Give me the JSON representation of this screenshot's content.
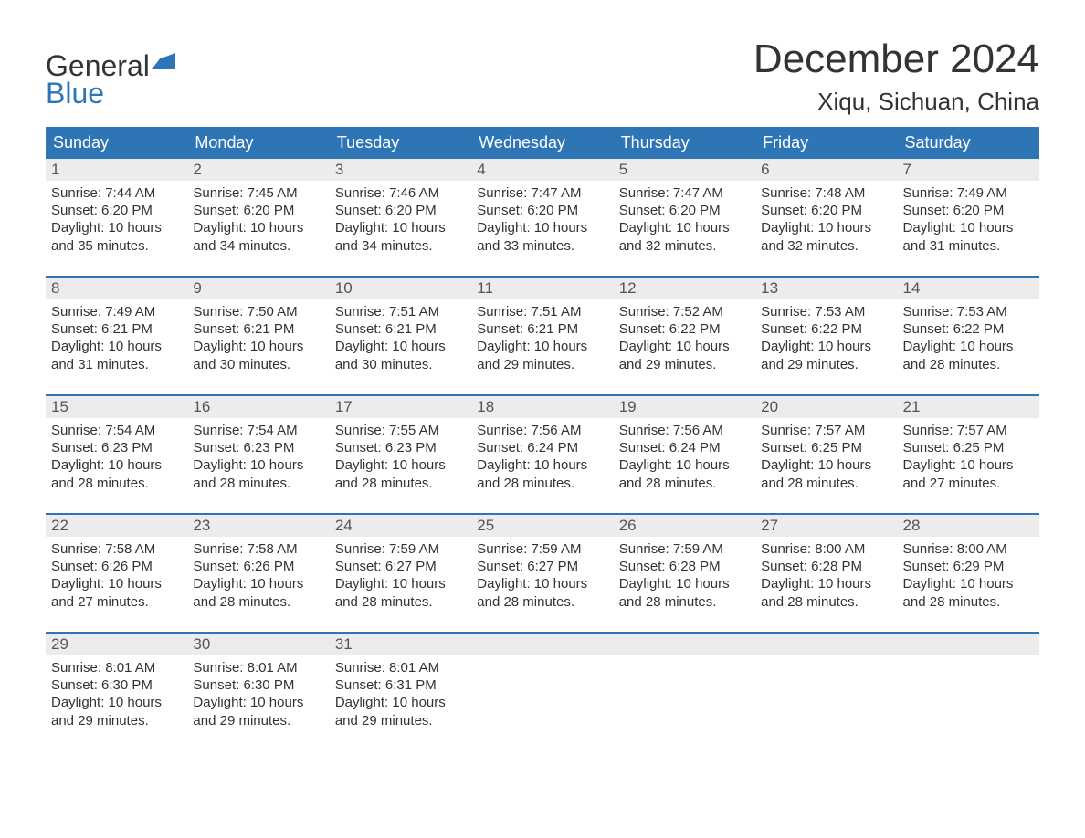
{
  "brand": {
    "line1": "General",
    "line2": "Blue"
  },
  "colors": {
    "brand_blue": "#2e75b6",
    "header_bg": "#2e75b6",
    "header_fg": "#ffffff",
    "daynum_bg": "#ececec",
    "text": "#333333",
    "background": "#ffffff"
  },
  "title": "December 2024",
  "location": "Xiqu, Sichuan, China",
  "day_names": [
    "Sunday",
    "Monday",
    "Tuesday",
    "Wednesday",
    "Thursday",
    "Friday",
    "Saturday"
  ],
  "labels": {
    "sunrise": "Sunrise:",
    "sunset": "Sunset:",
    "daylight": "Daylight:"
  },
  "weeks": [
    [
      {
        "num": "1",
        "sunrise": "7:44 AM",
        "sunset": "6:20 PM",
        "daylight": "10 hours and 35 minutes."
      },
      {
        "num": "2",
        "sunrise": "7:45 AM",
        "sunset": "6:20 PM",
        "daylight": "10 hours and 34 minutes."
      },
      {
        "num": "3",
        "sunrise": "7:46 AM",
        "sunset": "6:20 PM",
        "daylight": "10 hours and 34 minutes."
      },
      {
        "num": "4",
        "sunrise": "7:47 AM",
        "sunset": "6:20 PM",
        "daylight": "10 hours and 33 minutes."
      },
      {
        "num": "5",
        "sunrise": "7:47 AM",
        "sunset": "6:20 PM",
        "daylight": "10 hours and 32 minutes."
      },
      {
        "num": "6",
        "sunrise": "7:48 AM",
        "sunset": "6:20 PM",
        "daylight": "10 hours and 32 minutes."
      },
      {
        "num": "7",
        "sunrise": "7:49 AM",
        "sunset": "6:20 PM",
        "daylight": "10 hours and 31 minutes."
      }
    ],
    [
      {
        "num": "8",
        "sunrise": "7:49 AM",
        "sunset": "6:21 PM",
        "daylight": "10 hours and 31 minutes."
      },
      {
        "num": "9",
        "sunrise": "7:50 AM",
        "sunset": "6:21 PM",
        "daylight": "10 hours and 30 minutes."
      },
      {
        "num": "10",
        "sunrise": "7:51 AM",
        "sunset": "6:21 PM",
        "daylight": "10 hours and 30 minutes."
      },
      {
        "num": "11",
        "sunrise": "7:51 AM",
        "sunset": "6:21 PM",
        "daylight": "10 hours and 29 minutes."
      },
      {
        "num": "12",
        "sunrise": "7:52 AM",
        "sunset": "6:22 PM",
        "daylight": "10 hours and 29 minutes."
      },
      {
        "num": "13",
        "sunrise": "7:53 AM",
        "sunset": "6:22 PM",
        "daylight": "10 hours and 29 minutes."
      },
      {
        "num": "14",
        "sunrise": "7:53 AM",
        "sunset": "6:22 PM",
        "daylight": "10 hours and 28 minutes."
      }
    ],
    [
      {
        "num": "15",
        "sunrise": "7:54 AM",
        "sunset": "6:23 PM",
        "daylight": "10 hours and 28 minutes."
      },
      {
        "num": "16",
        "sunrise": "7:54 AM",
        "sunset": "6:23 PM",
        "daylight": "10 hours and 28 minutes."
      },
      {
        "num": "17",
        "sunrise": "7:55 AM",
        "sunset": "6:23 PM",
        "daylight": "10 hours and 28 minutes."
      },
      {
        "num": "18",
        "sunrise": "7:56 AM",
        "sunset": "6:24 PM",
        "daylight": "10 hours and 28 minutes."
      },
      {
        "num": "19",
        "sunrise": "7:56 AM",
        "sunset": "6:24 PM",
        "daylight": "10 hours and 28 minutes."
      },
      {
        "num": "20",
        "sunrise": "7:57 AM",
        "sunset": "6:25 PM",
        "daylight": "10 hours and 28 minutes."
      },
      {
        "num": "21",
        "sunrise": "7:57 AM",
        "sunset": "6:25 PM",
        "daylight": "10 hours and 27 minutes."
      }
    ],
    [
      {
        "num": "22",
        "sunrise": "7:58 AM",
        "sunset": "6:26 PM",
        "daylight": "10 hours and 27 minutes."
      },
      {
        "num": "23",
        "sunrise": "7:58 AM",
        "sunset": "6:26 PM",
        "daylight": "10 hours and 28 minutes."
      },
      {
        "num": "24",
        "sunrise": "7:59 AM",
        "sunset": "6:27 PM",
        "daylight": "10 hours and 28 minutes."
      },
      {
        "num": "25",
        "sunrise": "7:59 AM",
        "sunset": "6:27 PM",
        "daylight": "10 hours and 28 minutes."
      },
      {
        "num": "26",
        "sunrise": "7:59 AM",
        "sunset": "6:28 PM",
        "daylight": "10 hours and 28 minutes."
      },
      {
        "num": "27",
        "sunrise": "8:00 AM",
        "sunset": "6:28 PM",
        "daylight": "10 hours and 28 minutes."
      },
      {
        "num": "28",
        "sunrise": "8:00 AM",
        "sunset": "6:29 PM",
        "daylight": "10 hours and 28 minutes."
      }
    ],
    [
      {
        "num": "29",
        "sunrise": "8:01 AM",
        "sunset": "6:30 PM",
        "daylight": "10 hours and 29 minutes."
      },
      {
        "num": "30",
        "sunrise": "8:01 AM",
        "sunset": "6:30 PM",
        "daylight": "10 hours and 29 minutes."
      },
      {
        "num": "31",
        "sunrise": "8:01 AM",
        "sunset": "6:31 PM",
        "daylight": "10 hours and 29 minutes."
      },
      null,
      null,
      null,
      null
    ]
  ],
  "layout": {
    "font_family": "Arial",
    "title_fontsize": 44,
    "location_fontsize": 26,
    "dayheader_fontsize": 18,
    "daynum_fontsize": 17,
    "body_fontsize": 15,
    "cell_min_height": 128
  }
}
